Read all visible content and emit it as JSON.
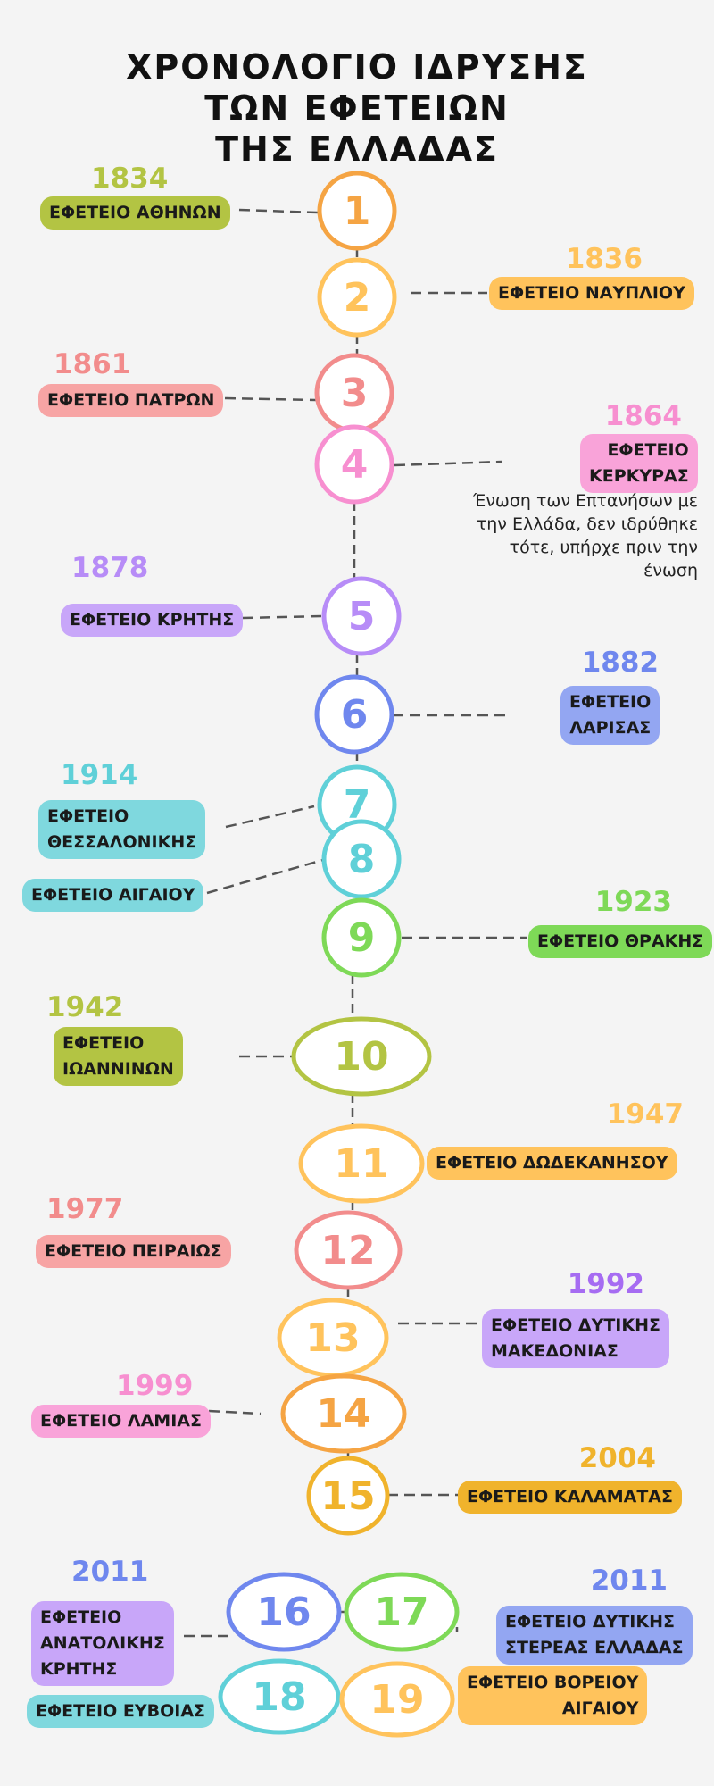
{
  "title": {
    "line1": "ΧΡΟΝΟΛΟΓΙΟ ΙΔΡΥΣΗΣ",
    "line2": "ΤΩΝ ΕΦΕΤΕΙΩΝ",
    "line3": "ΤΗΣ ΕΛΛΑΔΑΣ"
  },
  "colors": {
    "olive": "#b3c443",
    "orange": "#f5a443",
    "peach": "#ffc35c",
    "salmon": "#f28c8c",
    "pink": "#f78fd0",
    "purple": "#b78cf7",
    "blue": "#6f87ee",
    "cyan": "#5fd0d8",
    "green": "#7ed957",
    "gold": "#f0b32c",
    "connector": "#555555"
  },
  "courts": [
    {
      "number": "1",
      "year": "1834",
      "name": "ΕΦΕΤΕΙΟ ΑΘΗΝΩΝ",
      "color": "#f5a443",
      "labelColor": "#b3c443",
      "yearColor": "#b3c443"
    },
    {
      "number": "2",
      "year": "1836",
      "name": "ΕΦΕΤΕΙΟ ΝΑΥΠΛΙΟΥ",
      "color": "#ffc35c",
      "labelColor": "#ffc35c",
      "yearColor": "#ffc35c"
    },
    {
      "number": "3",
      "year": "1861",
      "name": "ΕΦΕΤΕΙΟ  ΠΑΤΡΩΝ",
      "color": "#f28c8c",
      "labelColor": "#f7a4a4",
      "yearColor": "#f28c8c"
    },
    {
      "number": "4",
      "year": "1864",
      "name": "ΕΦΕΤΕΙΟ\nΚΕΡΚΥΡΑΣ",
      "color": "#f78fd0",
      "labelColor": "#f9a3d9",
      "yearColor": "#f78fd0"
    },
    {
      "number": "5",
      "year": "1878",
      "name": "ΕΦΕΤΕΙΟ ΚΡΗΤΗΣ",
      "color": "#b78cf7",
      "labelColor": "#c8a6f9",
      "yearColor": "#b78cf7"
    },
    {
      "number": "6",
      "year": "1882",
      "name": "ΕΦΕΤΕΙΟ\nΛΑΡΙΣΑΣ",
      "color": "#6f87ee",
      "labelColor": "#93a6f2",
      "yearColor": "#6f87ee"
    },
    {
      "number": "7",
      "year": "1914",
      "name": "ΕΦΕΤΕΙΟ\nΘΕΣΣΑΛΟΝΙΚΗΣ",
      "color": "#5fd0d8",
      "labelColor": "#7fd8de",
      "yearColor": "#5fd0d8"
    },
    {
      "number": "8",
      "year": "",
      "name": "ΕΦΕΤΕΙΟ ΑΙΓΑΙΟΥ",
      "color": "#5fd0d8",
      "labelColor": "#7fd8de",
      "yearColor": "#5fd0d8"
    },
    {
      "number": "9",
      "year": "1923",
      "name": "ΕΦΕΤΕΙΟ ΘΡΑΚΗΣ",
      "color": "#7ed957",
      "labelColor": "#7ed957",
      "yearColor": "#7ed957"
    },
    {
      "number": "10",
      "year": "1942",
      "name": "ΕΦΕΤΕΙΟ\nΙΩΑΝΝΙΝΩΝ",
      "color": "#b3c443",
      "labelColor": "#b3c443",
      "yearColor": "#b3c443"
    },
    {
      "number": "11",
      "year": "1947",
      "name": "ΕΦΕΤΕΙΟ ΔΩΔΕΚΑΝΗΣΟΥ",
      "color": "#ffc35c",
      "labelColor": "#ffc35c",
      "yearColor": "#ffc35c"
    },
    {
      "number": "12",
      "year": "1977",
      "name": "ΕΦΕΤΕΙΟ ΠΕΙΡΑΙΩΣ",
      "color": "#f28c8c",
      "labelColor": "#f7a4a4",
      "yearColor": "#f28c8c"
    },
    {
      "number": "13",
      "year": "1992",
      "name": "ΕΦΕΤΕΙΟ  ΔΥΤΙΚΗΣ\nΜΑΚΕΔΟΝΙΑΣ",
      "color": "#ffc35c",
      "labelColor": "#c8a6f9",
      "yearColor": "#a66cf2"
    },
    {
      "number": "14",
      "year": "1999",
      "name": "ΕΦΕΤΕΙΟ ΛΑΜΙΑΣ",
      "color": "#f5a443",
      "labelColor": "#f9a3d9",
      "yearColor": "#f78fd0"
    },
    {
      "number": "15",
      "year": "2004",
      "name": "ΕΦΕΤΕΙΟ ΚΑΛΑΜΑΤΑΣ",
      "color": "#f0b32c",
      "labelColor": "#f0b32c",
      "yearColor": "#f0b32c"
    },
    {
      "number": "16",
      "year": "2011",
      "name": "ΕΦΕΤΕΙΟ\nΑΝΑΤΟΛΙΚΗΣ\nΚΡΗΤΗΣ",
      "color": "#6f87ee",
      "labelColor": "#c8a6f9",
      "yearColor": "#6f87ee"
    },
    {
      "number": "17",
      "year": "2011",
      "name": "ΕΦΕΤΕΙΟ ΔΥΤΙΚΗΣ\nΣΤΕΡΕΑΣ ΕΛΛΑΔΑΣ",
      "color": "#7ed957",
      "labelColor": "#93a6f2",
      "yearColor": "#6f87ee"
    },
    {
      "number": "18",
      "year": "",
      "name": "ΕΦΕΤΕΙΟ ΕΥΒΟΙΑΣ",
      "color": "#5fd0d8",
      "labelColor": "#7fd8de",
      "yearColor": "#5fd0d8"
    },
    {
      "number": "19",
      "year": "",
      "name": "ΕΦΕΤΕΙΟ ΒΟΡΕΙΟΥ\nΑΙΓΑΙΟΥ",
      "color": "#ffc35c",
      "labelColor": "#ffc35c",
      "yearColor": "#ffc35c"
    }
  ],
  "note": "Ένωση των Επτανήσων με την Ελλάδα, δεν ιδρύθηκε τότε, υπήρχε πριν την ένωση"
}
